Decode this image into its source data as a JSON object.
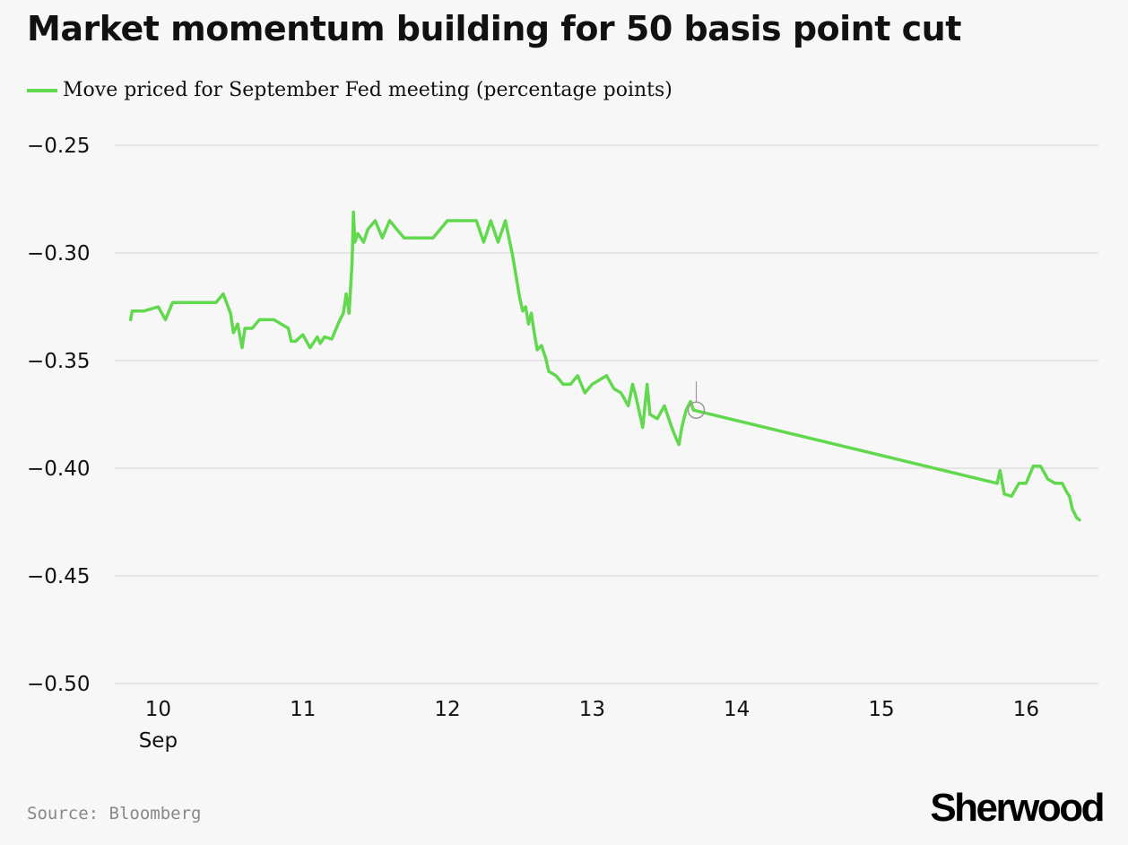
{
  "title": "Market momentum building for 50 basis point cut",
  "source": "Source: Bloomberg",
  "brand": "Sherwood",
  "colors": {
    "series": "#62d84e",
    "grid": "#dddddd",
    "axis": "#111111",
    "background": "#f7f7f7",
    "marker": "#999999"
  },
  "chart_data": {
    "type": "line",
    "title": "Market momentum building for 50 basis point cut",
    "xlabel": "",
    "ylabel": "",
    "ylim": [
      -0.5,
      -0.25
    ],
    "xlim": [
      9.7,
      16.5
    ],
    "grid": true,
    "legend_position": "top-left",
    "x_ticks": [
      {
        "value": 10,
        "label": "10",
        "sublabel": "Sep"
      },
      {
        "value": 11,
        "label": "11"
      },
      {
        "value": 12,
        "label": "12"
      },
      {
        "value": 13,
        "label": "13"
      },
      {
        "value": 14,
        "label": "14"
      },
      {
        "value": 15,
        "label": "15"
      },
      {
        "value": 16,
        "label": "16"
      }
    ],
    "y_ticks": [
      {
        "value": -0.25,
        "label": "−0.25"
      },
      {
        "value": -0.3,
        "label": "−0.30"
      },
      {
        "value": -0.35,
        "label": "−0.35"
      },
      {
        "value": -0.4,
        "label": "−0.40"
      },
      {
        "value": -0.45,
        "label": "−0.45"
      },
      {
        "value": -0.5,
        "label": "−0.50"
      }
    ],
    "series": [
      {
        "name": "Move priced for September Fed meeting (percentage points)",
        "x": [
          9.81,
          9.82,
          9.9,
          10.0,
          10.05,
          10.1,
          10.15,
          10.2,
          10.4,
          10.45,
          10.5,
          10.52,
          10.55,
          10.58,
          10.6,
          10.65,
          10.7,
          10.8,
          10.9,
          10.92,
          10.95,
          11.0,
          11.05,
          11.1,
          11.12,
          11.15,
          11.2,
          11.25,
          11.28,
          11.3,
          11.32,
          11.34,
          11.35,
          11.36,
          11.38,
          11.42,
          11.45,
          11.5,
          11.55,
          11.6,
          11.7,
          11.8,
          11.9,
          12.0,
          12.1,
          12.2,
          12.25,
          12.3,
          12.35,
          12.4,
          12.45,
          12.5,
          12.52,
          12.54,
          12.56,
          12.58,
          12.6,
          12.62,
          12.65,
          12.68,
          12.7,
          12.75,
          12.8,
          12.85,
          12.9,
          12.95,
          13.0,
          13.05,
          13.1,
          13.15,
          13.2,
          13.25,
          13.28,
          13.3,
          13.35,
          13.38,
          13.4,
          13.45,
          13.5,
          13.55,
          13.58,
          13.6,
          13.62,
          13.65,
          13.68,
          13.7,
          15.8,
          15.82,
          15.85,
          15.9,
          15.95,
          16.0,
          16.05,
          16.1,
          16.15,
          16.2,
          16.25,
          16.28,
          16.3,
          16.32,
          16.35,
          16.37
        ],
        "y": [
          -0.331,
          -0.327,
          -0.327,
          -0.325,
          -0.331,
          -0.323,
          -0.323,
          -0.323,
          -0.323,
          -0.319,
          -0.328,
          -0.337,
          -0.333,
          -0.344,
          -0.335,
          -0.335,
          -0.331,
          -0.331,
          -0.335,
          -0.341,
          -0.341,
          -0.338,
          -0.344,
          -0.339,
          -0.342,
          -0.339,
          -0.34,
          -0.332,
          -0.328,
          -0.319,
          -0.328,
          -0.305,
          -0.281,
          -0.295,
          -0.291,
          -0.295,
          -0.289,
          -0.285,
          -0.293,
          -0.285,
          -0.293,
          -0.293,
          -0.293,
          -0.285,
          -0.285,
          -0.285,
          -0.295,
          -0.285,
          -0.295,
          -0.285,
          -0.301,
          -0.321,
          -0.327,
          -0.325,
          -0.333,
          -0.328,
          -0.337,
          -0.345,
          -0.343,
          -0.349,
          -0.355,
          -0.357,
          -0.361,
          -0.361,
          -0.357,
          -0.365,
          -0.361,
          -0.359,
          -0.357,
          -0.363,
          -0.365,
          -0.371,
          -0.361,
          -0.366,
          -0.381,
          -0.361,
          -0.375,
          -0.377,
          -0.371,
          -0.381,
          -0.386,
          -0.389,
          -0.381,
          -0.373,
          -0.369,
          -0.373,
          -0.407,
          -0.401,
          -0.412,
          -0.413,
          -0.407,
          -0.407,
          -0.399,
          -0.399,
          -0.405,
          -0.407,
          -0.407,
          -0.411,
          -0.413,
          -0.419,
          -0.423,
          -0.424
        ]
      }
    ],
    "highlight_point": {
      "x": 13.72,
      "y": -0.373
    }
  }
}
